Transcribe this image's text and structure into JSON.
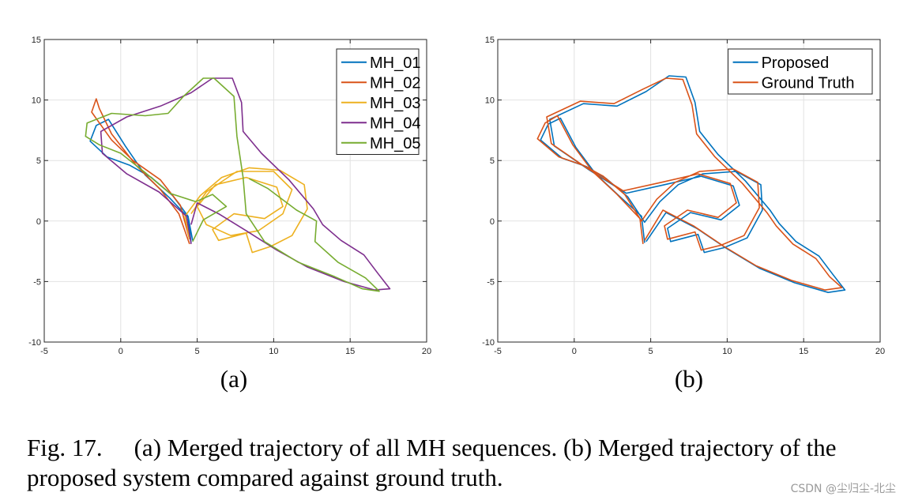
{
  "chart_data": [
    {
      "type": "line",
      "id": "a",
      "subcaption": "(a)",
      "xlim": [
        -5,
        20
      ],
      "ylim": [
        -10,
        15
      ],
      "xticks": [
        -5,
        0,
        5,
        10,
        15,
        20
      ],
      "yticks": [
        -10,
        -5,
        0,
        5,
        10,
        15
      ],
      "grid": true,
      "legend_position": "top-right",
      "series": [
        {
          "name": "MH_01",
          "color": "#0072BD",
          "points": [
            [
              4.6,
              -1.8
            ],
            [
              4.4,
              0.3
            ],
            [
              3.2,
              1.9
            ],
            [
              1.6,
              3.8
            ],
            [
              0.3,
              6.2
            ],
            [
              -0.8,
              8.4
            ],
            [
              -1.6,
              7.9
            ],
            [
              -2.0,
              6.6
            ],
            [
              -0.9,
              5.3
            ],
            [
              0.6,
              4.6
            ],
            [
              2.0,
              3.6
            ],
            [
              3.4,
              2.1
            ],
            [
              4.4,
              0.4
            ],
            [
              4.7,
              -1.6
            ]
          ]
        },
        {
          "name": "MH_02",
          "color": "#D95319",
          "points": [
            [
              4.5,
              -1.9
            ],
            [
              3.8,
              0.6
            ],
            [
              2.6,
              2.6
            ],
            [
              1.0,
              4.6
            ],
            [
              -0.6,
              7.2
            ],
            [
              -1.4,
              9.3
            ],
            [
              -1.6,
              10.1
            ],
            [
              -1.9,
              9.0
            ],
            [
              -0.6,
              6.7
            ],
            [
              0.8,
              5.0
            ],
            [
              2.6,
              3.4
            ],
            [
              3.9,
              1.3
            ],
            [
              4.5,
              -1.5
            ]
          ]
        },
        {
          "name": "MH_03",
          "color": "#EDB120",
          "points": [
            [
              4.5,
              -1.5
            ],
            [
              4.2,
              0.4
            ],
            [
              5.2,
              2.1
            ],
            [
              6.6,
              3.6
            ],
            [
              8.4,
              4.4
            ],
            [
              10.4,
              4.2
            ],
            [
              12.0,
              3.0
            ],
            [
              12.2,
              1.0
            ],
            [
              11.2,
              -1.2
            ],
            [
              9.8,
              -2.1
            ],
            [
              8.6,
              -2.6
            ],
            [
              8.2,
              -1.0
            ],
            [
              6.4,
              -1.6
            ],
            [
              6.0,
              -0.7
            ],
            [
              7.4,
              0.6
            ],
            [
              9.4,
              0.2
            ],
            [
              10.6,
              1.2
            ],
            [
              10.2,
              2.8
            ],
            [
              8.2,
              3.6
            ],
            [
              6.2,
              3.0
            ],
            [
              5.0,
              1.2
            ],
            [
              5.6,
              -0.3
            ],
            [
              7.2,
              -1.2
            ],
            [
              9.0,
              -0.8
            ],
            [
              10.6,
              0.6
            ],
            [
              11.2,
              2.6
            ],
            [
              10.0,
              4.1
            ],
            [
              7.6,
              4.1
            ],
            [
              5.6,
              2.4
            ],
            [
              4.6,
              0.6
            ]
          ]
        },
        {
          "name": "MH_04",
          "color": "#7E2F8E",
          "points": [
            [
              4.6,
              -1.9
            ],
            [
              4.3,
              0.4
            ],
            [
              2.5,
              2.4
            ],
            [
              0.4,
              3.9
            ],
            [
              -1.2,
              5.6
            ],
            [
              -1.3,
              7.4
            ],
            [
              0.4,
              8.6
            ],
            [
              2.6,
              9.5
            ],
            [
              4.6,
              10.6
            ],
            [
              6.0,
              11.8
            ],
            [
              7.3,
              11.8
            ],
            [
              7.9,
              9.8
            ],
            [
              8.0,
              7.4
            ],
            [
              9.2,
              5.6
            ],
            [
              11.0,
              3.4
            ],
            [
              12.6,
              1.0
            ],
            [
              13.2,
              -0.3
            ],
            [
              14.4,
              -1.6
            ],
            [
              15.9,
              -2.8
            ],
            [
              16.8,
              -4.3
            ],
            [
              17.6,
              -5.6
            ],
            [
              16.6,
              -5.7
            ],
            [
              14.6,
              -5.0
            ],
            [
              12.2,
              -3.8
            ],
            [
              10.2,
              -2.4
            ],
            [
              8.2,
              -0.8
            ],
            [
              6.4,
              0.6
            ],
            [
              5.0,
              1.5
            ],
            [
              4.6,
              -0.3
            ]
          ]
        },
        {
          "name": "MH_05",
          "color": "#77AC30",
          "points": [
            [
              4.7,
              -1.7
            ],
            [
              5.4,
              0.1
            ],
            [
              6.9,
              1.2
            ],
            [
              6.0,
              2.2
            ],
            [
              4.9,
              1.6
            ],
            [
              3.2,
              2.3
            ],
            [
              1.6,
              4.0
            ],
            [
              0.0,
              5.6
            ],
            [
              -1.4,
              6.3
            ],
            [
              -2.3,
              7.0
            ],
            [
              -2.2,
              8.1
            ],
            [
              -0.6,
              8.9
            ],
            [
              1.6,
              8.7
            ],
            [
              3.1,
              8.9
            ],
            [
              4.1,
              10.3
            ],
            [
              5.4,
              11.8
            ],
            [
              6.1,
              11.8
            ],
            [
              7.4,
              10.3
            ],
            [
              7.6,
              7.0
            ],
            [
              8.0,
              3.6
            ],
            [
              8.2,
              0.6
            ],
            [
              9.4,
              -1.7
            ],
            [
              11.6,
              -3.4
            ],
            [
              14.0,
              -4.6
            ],
            [
              15.8,
              -5.6
            ],
            [
              16.9,
              -5.8
            ],
            [
              16.0,
              -4.7
            ],
            [
              14.2,
              -3.4
            ],
            [
              12.7,
              -1.7
            ],
            [
              12.8,
              0.0
            ],
            [
              11.5,
              0.9
            ],
            [
              9.6,
              2.7
            ],
            [
              8.4,
              3.5
            ]
          ]
        }
      ]
    },
    {
      "type": "line",
      "id": "b",
      "subcaption": "(b)",
      "xlim": [
        -5,
        20
      ],
      "ylim": [
        -10,
        15
      ],
      "xticks": [
        -5,
        0,
        5,
        10,
        15,
        20
      ],
      "yticks": [
        -10,
        -5,
        0,
        5,
        10,
        15
      ],
      "grid": true,
      "legend_position": "top-right",
      "series": [
        {
          "name": "Proposed",
          "color": "#0072BD",
          "points": [
            [
              4.6,
              -1.8
            ],
            [
              4.4,
              0.4
            ],
            [
              3.0,
              2.0
            ],
            [
              1.4,
              3.9
            ],
            [
              0.1,
              6.1
            ],
            [
              -0.9,
              8.5
            ],
            [
              -1.7,
              8.0
            ],
            [
              -2.2,
              6.7
            ],
            [
              -0.8,
              5.2
            ],
            [
              0.8,
              4.5
            ],
            [
              2.1,
              3.5
            ],
            [
              3.5,
              2.0
            ],
            [
              4.6,
              -0.1
            ],
            [
              5.6,
              1.6
            ],
            [
              6.8,
              3.0
            ],
            [
              8.4,
              3.9
            ],
            [
              10.6,
              4.1
            ],
            [
              12.2,
              3.0
            ],
            [
              12.3,
              0.9
            ],
            [
              11.3,
              -1.4
            ],
            [
              9.8,
              -2.2
            ],
            [
              8.5,
              -2.6
            ],
            [
              8.1,
              -1.1
            ],
            [
              6.3,
              -1.7
            ],
            [
              6.1,
              -0.6
            ],
            [
              7.6,
              0.7
            ],
            [
              9.6,
              0.1
            ],
            [
              10.8,
              1.3
            ],
            [
              10.4,
              2.9
            ],
            [
              8.3,
              3.7
            ],
            [
              5.9,
              3.0
            ],
            [
              3.4,
              2.3
            ],
            [
              1.0,
              4.2
            ],
            [
              -1.3,
              6.2
            ],
            [
              -1.6,
              8.4
            ],
            [
              0.6,
              9.7
            ],
            [
              2.8,
              9.5
            ],
            [
              4.7,
              10.7
            ],
            [
              6.2,
              12.0
            ],
            [
              7.3,
              11.9
            ],
            [
              7.9,
              9.8
            ],
            [
              8.2,
              7.4
            ],
            [
              9.4,
              5.5
            ],
            [
              11.2,
              3.3
            ],
            [
              12.8,
              0.9
            ],
            [
              13.4,
              -0.2
            ],
            [
              14.5,
              -1.7
            ],
            [
              16.0,
              -2.9
            ],
            [
              16.9,
              -4.4
            ],
            [
              17.7,
              -5.7
            ],
            [
              16.6,
              -5.9
            ],
            [
              14.4,
              -5.1
            ],
            [
              12.1,
              -3.9
            ],
            [
              10.0,
              -2.3
            ],
            [
              8.0,
              -0.6
            ],
            [
              6.0,
              0.7
            ],
            [
              4.7,
              -1.7
            ]
          ]
        },
        {
          "name": "Ground Truth",
          "color": "#D95319",
          "points": [
            [
              4.5,
              -1.9
            ],
            [
              4.3,
              0.2
            ],
            [
              2.8,
              2.2
            ],
            [
              1.2,
              4.1
            ],
            [
              -0.1,
              6.3
            ],
            [
              -1.1,
              8.7
            ],
            [
              -1.9,
              8.1
            ],
            [
              -2.4,
              6.8
            ],
            [
              -1.0,
              5.3
            ],
            [
              0.6,
              4.6
            ],
            [
              1.9,
              3.7
            ],
            [
              3.3,
              2.2
            ],
            [
              4.4,
              0.0
            ],
            [
              5.4,
              1.8
            ],
            [
              6.6,
              3.2
            ],
            [
              8.2,
              4.1
            ],
            [
              10.4,
              4.3
            ],
            [
              12.0,
              3.2
            ],
            [
              12.1,
              1.1
            ],
            [
              11.1,
              -1.2
            ],
            [
              9.6,
              -2.0
            ],
            [
              8.3,
              -2.4
            ],
            [
              7.9,
              -0.9
            ],
            [
              6.1,
              -1.5
            ],
            [
              5.9,
              -0.4
            ],
            [
              7.4,
              0.9
            ],
            [
              9.4,
              0.3
            ],
            [
              10.6,
              1.5
            ],
            [
              10.2,
              3.1
            ],
            [
              8.1,
              3.9
            ],
            [
              5.7,
              3.2
            ],
            [
              3.2,
              2.5
            ],
            [
              0.8,
              4.4
            ],
            [
              -1.5,
              6.4
            ],
            [
              -1.8,
              8.6
            ],
            [
              0.4,
              9.9
            ],
            [
              2.6,
              9.7
            ],
            [
              4.5,
              10.9
            ],
            [
              6.0,
              11.8
            ],
            [
              7.1,
              11.7
            ],
            [
              7.7,
              9.6
            ],
            [
              8.0,
              7.2
            ],
            [
              9.2,
              5.3
            ],
            [
              11.0,
              3.1
            ],
            [
              12.6,
              0.7
            ],
            [
              13.2,
              -0.4
            ],
            [
              14.3,
              -1.9
            ],
            [
              15.8,
              -3.1
            ],
            [
              16.7,
              -4.6
            ],
            [
              17.5,
              -5.5
            ],
            [
              16.4,
              -5.7
            ],
            [
              14.2,
              -4.9
            ],
            [
              11.9,
              -3.7
            ],
            [
              9.8,
              -2.1
            ],
            [
              7.8,
              -0.4
            ],
            [
              5.8,
              0.9
            ],
            [
              4.6,
              -1.6
            ]
          ]
        }
      ]
    }
  ],
  "caption": {
    "label": "Fig. 17.",
    "text": "(a) Merged trajectory of all MH sequences. (b) Merged trajectory of the proposed system compared against ground truth."
  },
  "watermark": "CSDN @尘归尘-北尘"
}
